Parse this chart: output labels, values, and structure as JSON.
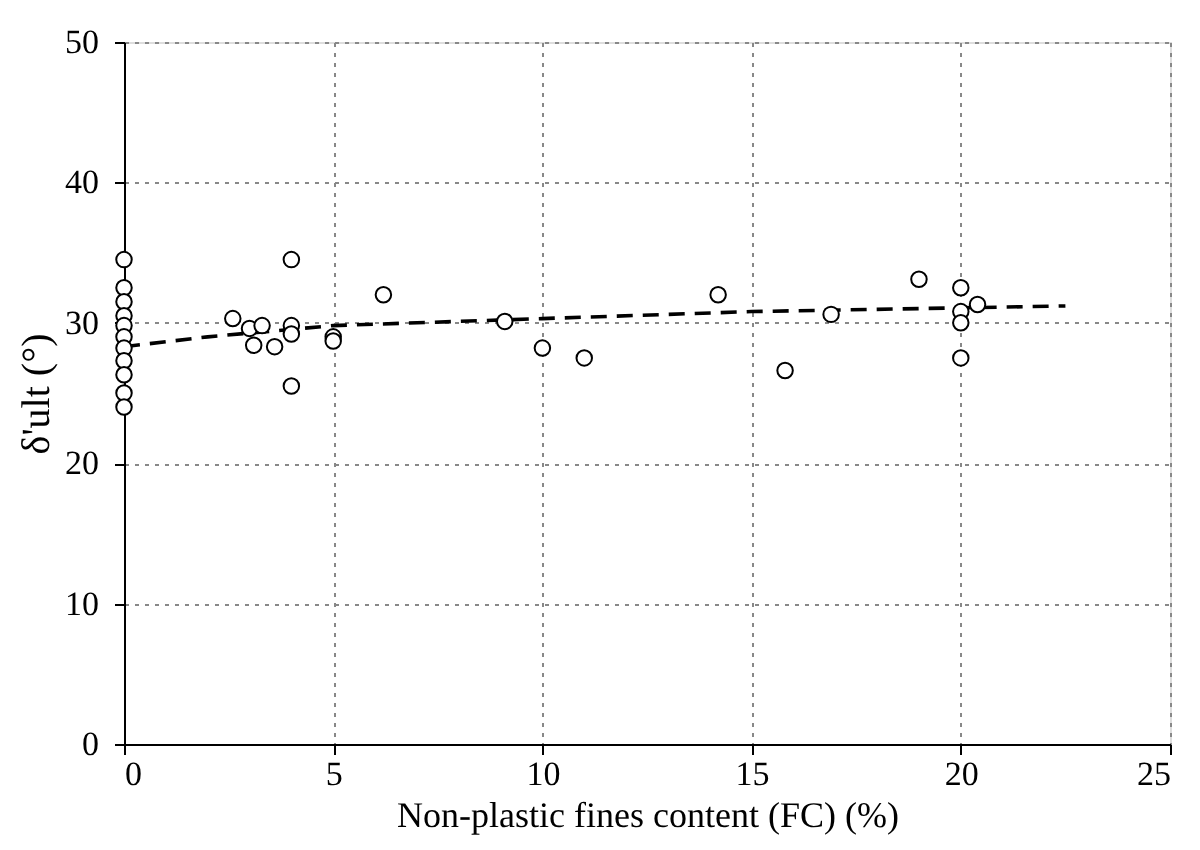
{
  "chart_data": {
    "type": "scatter",
    "xlabel": "Non-plastic fines content (FC) (%)",
    "ylabel": "δ'ult (°)",
    "xlim": [
      0,
      25
    ],
    "xticks": [
      0,
      5,
      10,
      15,
      20,
      25
    ],
    "ylim": [
      0,
      50
    ],
    "yticks": [
      0,
      10,
      20,
      30,
      40,
      50
    ],
    "grid": true,
    "series": [
      {
        "marker": "circle",
        "color": "#000000",
        "x": [
          0,
          0,
          0,
          0,
          0,
          0,
          0,
          0,
          0,
          0,
          0,
          2.6,
          3.0,
          3.1,
          3.3,
          3.6,
          4.0,
          4.0,
          4.0,
          4.0,
          5.0,
          5.0,
          6.2,
          9.1,
          10,
          11,
          14.2,
          15.8,
          16.9,
          19,
          20,
          20,
          20,
          20,
          20.4
        ],
        "values": [
          34.5,
          32.5,
          31.5,
          30.5,
          29.8,
          29,
          28.2,
          27.3,
          26.3,
          25,
          24,
          30.3,
          29.6,
          28.4,
          29.8,
          28.3,
          34.5,
          29.8,
          29.2,
          25.5,
          29,
          28.7,
          32,
          30.1,
          28.2,
          27.5,
          32,
          26.6,
          30.6,
          33.1,
          32.5,
          30.8,
          30,
          27.5,
          31.3
        ]
      },
      {
        "type": "line",
        "line_style": "dashed",
        "marker": "none",
        "color": "#000000",
        "x": [
          0,
          2,
          5,
          10,
          15,
          22.5
        ],
        "values": [
          28.3,
          29.0,
          29.8,
          30.3,
          30.8,
          31.2
        ]
      }
    ]
  }
}
